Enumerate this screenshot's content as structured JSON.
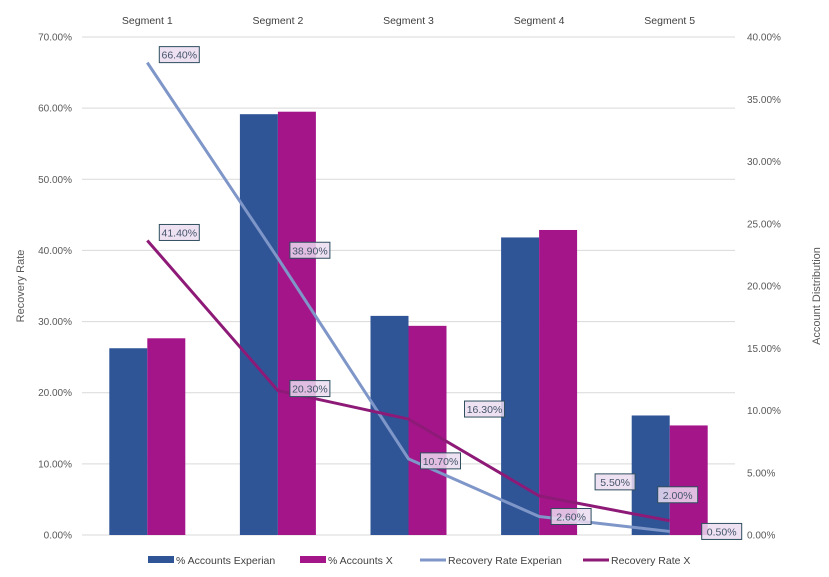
{
  "chart_data": {
    "type": "bar",
    "title": "",
    "categories": [
      "Segment 1",
      "Segment 2",
      "Segment 3",
      "Segment 4",
      "Segment 5"
    ],
    "category_axis_position": "top",
    "series": [
      {
        "name": "% Accounts Experian",
        "type": "bar",
        "axis": "right",
        "color": "#2f5597",
        "values": [
          15.0,
          33.8,
          17.6,
          23.9,
          9.6
        ]
      },
      {
        "name": "% Accounts X",
        "type": "bar",
        "axis": "right",
        "color": "#a5158a",
        "values": [
          15.8,
          34.0,
          16.8,
          24.5,
          8.8
        ]
      },
      {
        "name": "Recovery Rate Experian",
        "type": "line",
        "axis": "left",
        "color": "#7f96c8",
        "values": [
          66.4,
          38.9,
          10.7,
          2.6,
          0.5
        ],
        "labels": [
          "66.40%",
          "38.90%",
          "10.70%",
          "2.60%",
          "0.50%"
        ]
      },
      {
        "name": "Recovery Rate X",
        "type": "line",
        "axis": "left",
        "color": "#8e1a78",
        "values": [
          41.4,
          20.3,
          16.3,
          5.5,
          2.0
        ],
        "labels": [
          "41.40%",
          "20.30%",
          "16.30%",
          "5.50%",
          "2.00%"
        ]
      }
    ],
    "ylabel": "Recovery Rate",
    "ylim": [
      0,
      70
    ],
    "yticks": [
      "0.00%",
      "10.00%",
      "20.00%",
      "30.00%",
      "40.00%",
      "50.00%",
      "60.00%",
      "70.00%"
    ],
    "y2label": "Account Distribution",
    "y2lim": [
      0,
      40
    ],
    "y2ticks": [
      "0.00%",
      "5.00%",
      "10.00%",
      "15.00%",
      "20.00%",
      "25.00%",
      "30.00%",
      "35.00%",
      "40.00%"
    ],
    "grid": true,
    "legend": "bottom"
  }
}
